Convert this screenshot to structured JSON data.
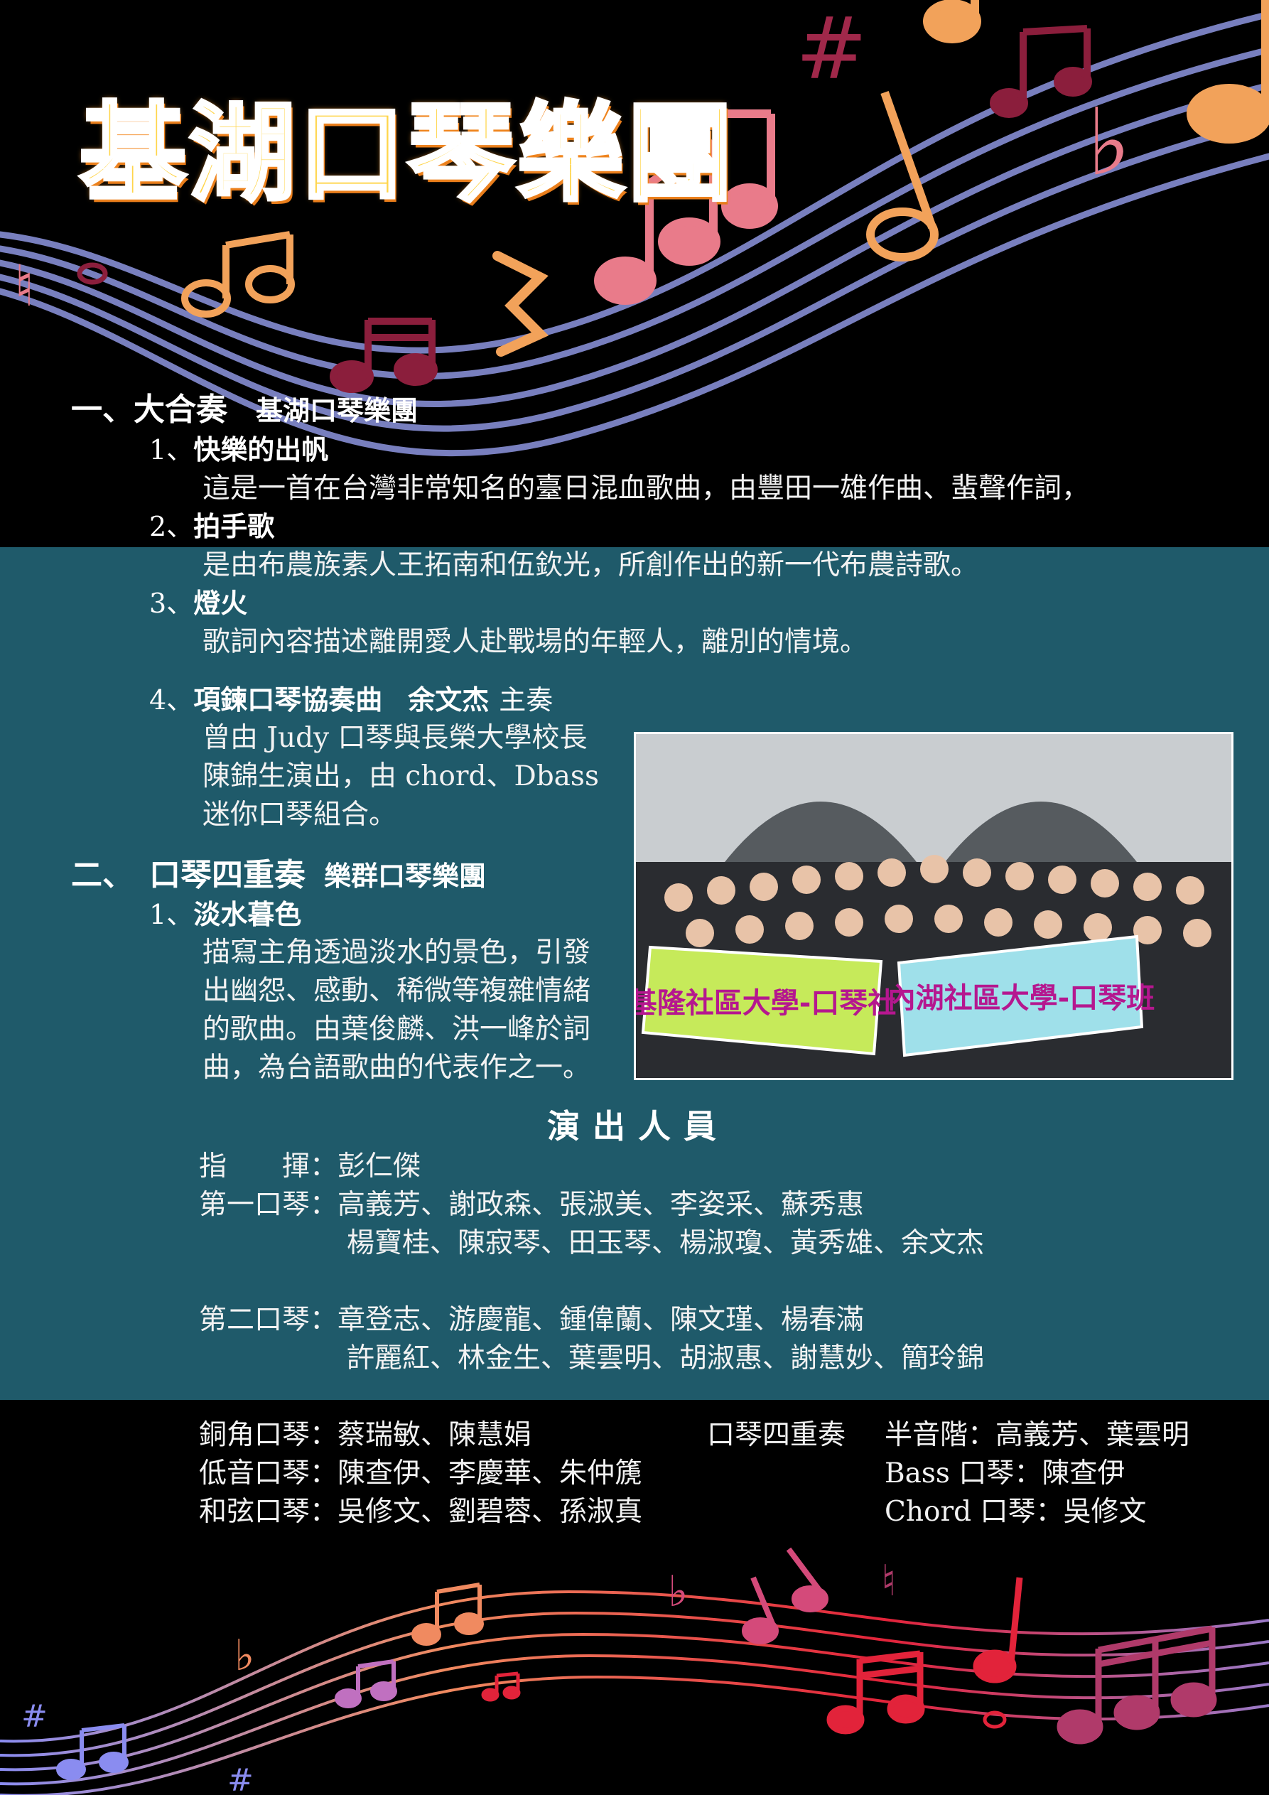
{
  "title": "基湖口琴樂團",
  "section1": {
    "heading": "一、大合奏",
    "performer": "基湖口琴樂團",
    "items": [
      {
        "num": "1、",
        "name": "快樂的出帆",
        "desc": "這是一首在台灣非常知名的臺日混血歌曲，由豐田一雄作曲、蜚聲作詞，"
      },
      {
        "num": "2、",
        "name": "拍手歌",
        "desc": "是由布農族素人王拓南和伍欽光，所創作出的新一代布農詩歌。"
      },
      {
        "num": "3、",
        "name": "燈火",
        "desc": "歌詞內容描述離開愛人赴戰場的年輕人，離別的情境。"
      }
    ],
    "item4": {
      "num": "4、",
      "name": "項鍊口琴協奏曲",
      "soloist": "余文杰",
      "role": "主奏",
      "lines": [
        "曾由 Judy 口琴與長榮大學校長",
        "陳錦生演出，由 chord、Dbass",
        "迷你口琴組合。"
      ]
    }
  },
  "section2": {
    "heading": "二、",
    "name": "口琴四重奏",
    "performer": "樂群口琴樂團",
    "item": {
      "num": "1、",
      "name": "淡水暮色",
      "lines": [
        "描寫主角透過淡水的景色，引發",
        "出幽怨、感動、稀微等複雜情緒",
        "的歌曲。由葉俊麟、洪一峰於詞",
        "曲，為台語歌曲的代表作之一。"
      ]
    }
  },
  "photo": {
    "banner_left": "基隆社區大學-口琴社",
    "banner_right": "內湖社區大學-口琴班"
  },
  "performers": {
    "title": "演出人員",
    "conductor_label": "指　　揮：",
    "conductor": "彭仁傑",
    "first_label": "第一口琴：",
    "first_line1": "高義芳、謝政森、張淑美、李姿采、蘇秀惠",
    "first_line2": "楊寶桂、陳寂琴、田玉琴、楊淑瓊、黃秀雄、余文杰",
    "second_label": "第二口琴：",
    "second_line1": "章登志、游慶龍、鍾偉蘭、陳文瑾、楊春滿",
    "second_line2": "許麗紅、林金生、葉雲明、胡淑惠、謝慧妙、簡玲錦",
    "horn_label": "銅角口琴：",
    "horn": "蔡瑞敏、陳慧娟",
    "bass_label": "低音口琴：",
    "bass": "陳查伊、李慶華、朱仲篪",
    "chord_label": "和弦口琴：",
    "chord": "吳修文、劉碧蓉、孫淑真",
    "quartet_label": "口琴四重奏",
    "quartet_chromatic": "半音階：高義芳、葉雲明",
    "quartet_bass": "Bass 口琴：陳查伊",
    "quartet_chord": "Chord 口琴：吳修文"
  }
}
